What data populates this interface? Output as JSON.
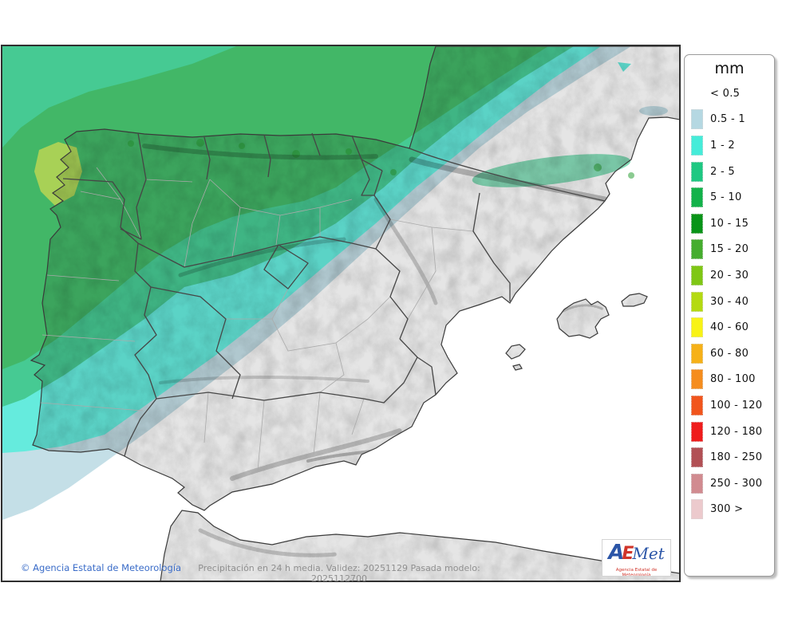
{
  "legend": {
    "title": "mm",
    "entries": [
      {
        "label": "< 0.5",
        "color": null
      },
      {
        "label": "0.5 - 1",
        "color": "#b5d8e2"
      },
      {
        "label": "1 - 2",
        "color": "#45ecd9"
      },
      {
        "label": "2 - 5",
        "color": "#1ec882"
      },
      {
        "label": "5 - 10",
        "color": "#12b24a"
      },
      {
        "label": "10 - 15",
        "color": "#089418"
      },
      {
        "label": "15 - 20",
        "color": "#45ad2e"
      },
      {
        "label": "20 - 30",
        "color": "#7fc714"
      },
      {
        "label": "30 - 40",
        "color": "#b4da11"
      },
      {
        "label": "40 - 60",
        "color": "#f8f316"
      },
      {
        "label": "60 - 80",
        "color": "#f6b118"
      },
      {
        "label": "80 - 100",
        "color": "#f58d1e"
      },
      {
        "label": "100 - 120",
        "color": "#f1551c"
      },
      {
        "label": "120 - 180",
        "color": "#ef1c1c"
      },
      {
        "label": "180 - 250",
        "color": "#b25055"
      },
      {
        "label": "250 - 300",
        "color": "#d18b90"
      },
      {
        "label": "300 >",
        "color": "#eccacd"
      }
    ]
  },
  "footer": {
    "copyright": "© Agencia Estatal de Meteorología",
    "status": "Precipitación en 24 h media. Validez: 20251129 Pasada modelo: 2025112700"
  },
  "logo": {
    "part_a": "A",
    "part_e": "E",
    "part_met": "Met",
    "subtitle": "Agencia Estatal de Meteorología"
  },
  "map": {
    "colors": {
      "sea": "#ffffff",
      "land": "#e5e5e5",
      "terrain_shade": "#6b6b6b",
      "coast": "#3a3a3a",
      "border_region": "#464646",
      "border_province": "#aaaaaa",
      "precip_05_1": "#bcdbe4",
      "precip_1_2": "#4fe9d9",
      "precip_2_5": "#2cc384",
      "precip_5_10": "#27ad52",
      "precip_10_15": "#0e9419",
      "precip_20_30": "#9ccb3e"
    }
  }
}
